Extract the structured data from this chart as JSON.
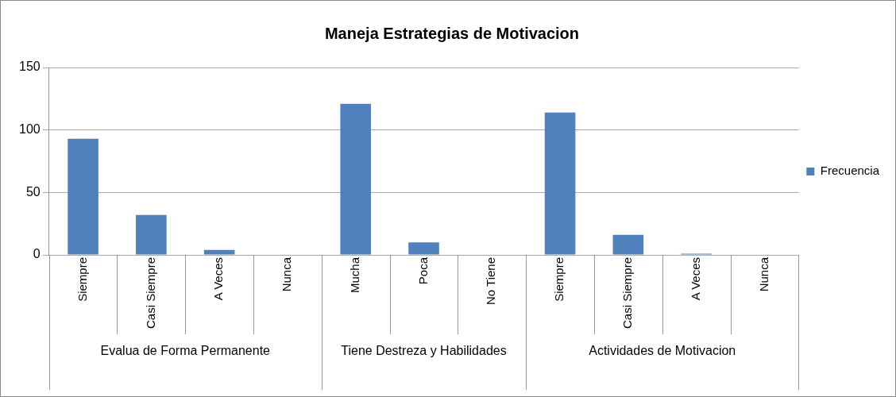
{
  "chart_data": {
    "type": "bar",
    "title": "Maneja Estrategias de Motivacion",
    "categories": [
      "Siempre",
      "Casi Siempre",
      "A Veces",
      "Nunca",
      "Mucha",
      "Poca",
      "No Tiene",
      "Siempre",
      "Casi Siempre",
      "A Veces",
      "Nunca"
    ],
    "series": [
      {
        "name": "Frecuencia",
        "color": "#4f81bd",
        "values": [
          93,
          32,
          4,
          0,
          121,
          10,
          0,
          114,
          16,
          1,
          0
        ]
      }
    ],
    "annotations": [
      "Evalua de Forma Permanente",
      "Tiene Destreza y Habilidades",
      "Actividades de Motivacion"
    ],
    "ylim": [
      0,
      150
    ],
    "yticks": [
      0,
      50,
      100,
      150
    ],
    "grid": "y",
    "legend": "right"
  }
}
